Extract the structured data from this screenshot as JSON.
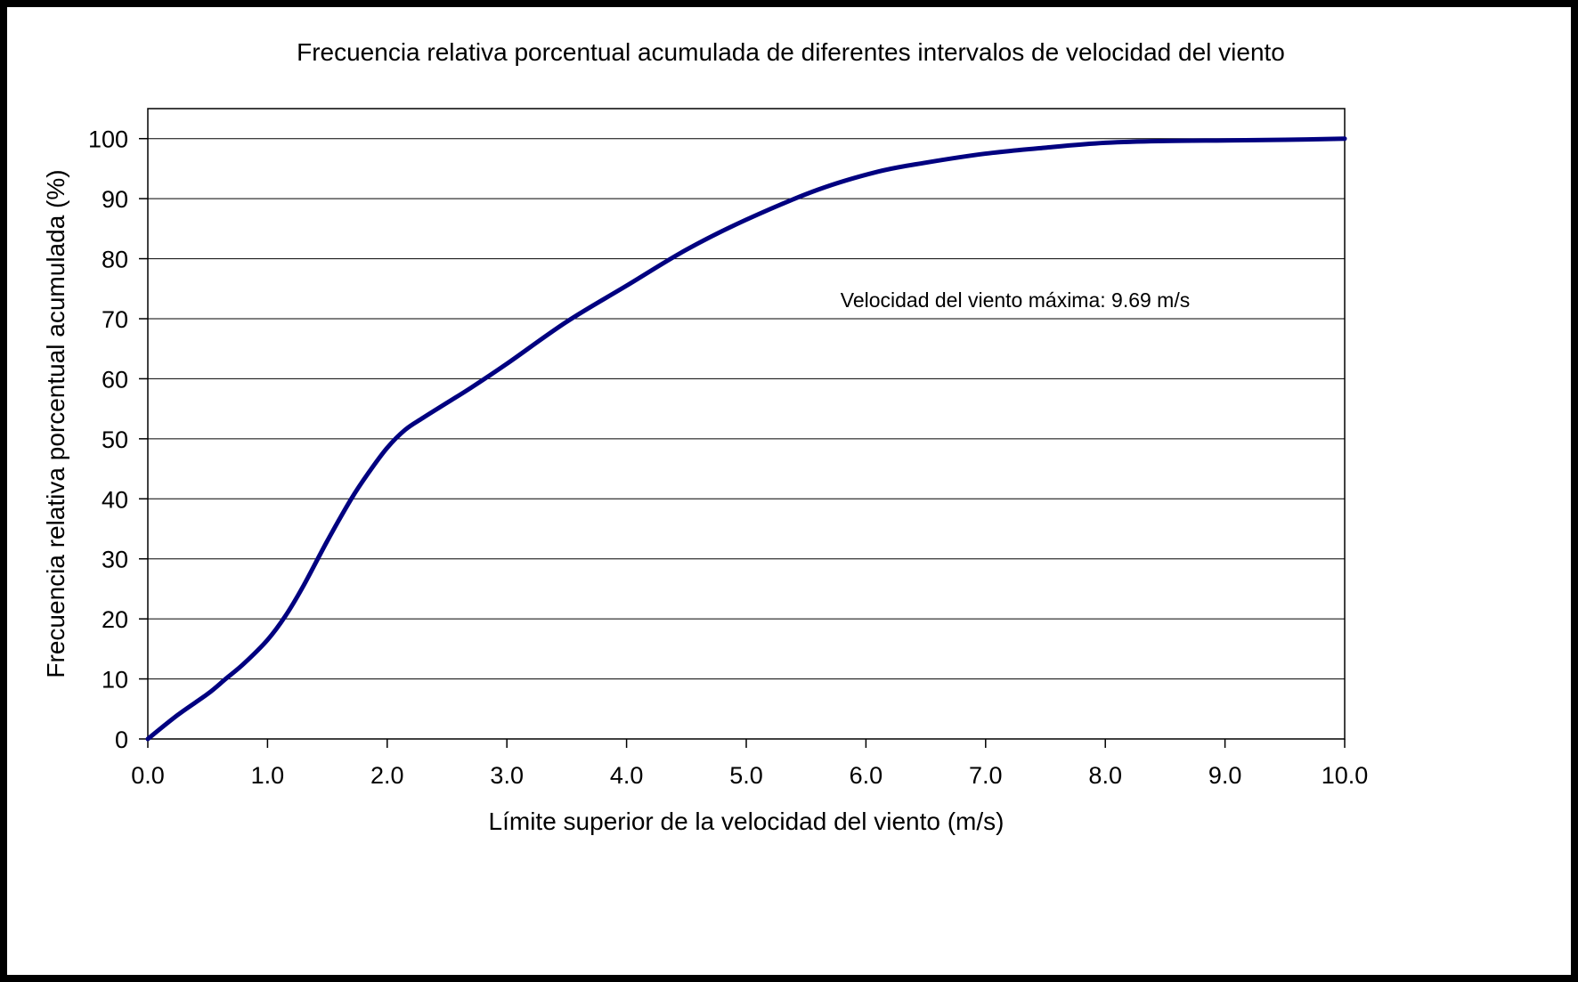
{
  "chart_data": {
    "type": "line",
    "title": "Frecuencia relativa porcentual acumulada de diferentes intervalos de velocidad del viento",
    "xlabel": "Límite superior de la velocidad del viento (m/s)",
    "ylabel": "Frecuencia relativa porcentual acumulada (%)",
    "xlim": [
      0,
      10
    ],
    "ylim": [
      0,
      105
    ],
    "x_ticks": [
      "0.0",
      "1.0",
      "2.0",
      "3.0",
      "4.0",
      "5.0",
      "6.0",
      "7.0",
      "8.0",
      "9.0",
      "10.0"
    ],
    "y_ticks": [
      "0",
      "10",
      "20",
      "30",
      "40",
      "50",
      "60",
      "70",
      "80",
      "90",
      "100"
    ],
    "grid": "horizontal",
    "annotation": "Velocidad del viento máxima: 9.69 m/s",
    "series": [
      {
        "color": "#000080",
        "x": [
          0.0,
          0.25,
          0.5,
          0.65,
          0.8,
          1.0,
          1.15,
          1.3,
          1.5,
          1.7,
          1.85,
          2.0,
          2.15,
          2.3,
          2.5,
          2.7,
          3.0,
          3.5,
          4.0,
          4.5,
          5.0,
          5.6,
          6.1,
          6.5,
          7.0,
          7.5,
          8.0,
          8.5,
          9.0,
          9.5,
          10.0
        ],
        "y": [
          0,
          4,
          7.5,
          10,
          12.5,
          16.5,
          20.5,
          25.5,
          33,
          40,
          44.5,
          48.5,
          51.5,
          53.5,
          56,
          58.5,
          62.5,
          69.5,
          75.5,
          81.5,
          86.5,
          91.5,
          94.5,
          96,
          97.5,
          98.5,
          99.3,
          99.6,
          99.7,
          99.8,
          100
        ]
      }
    ]
  }
}
